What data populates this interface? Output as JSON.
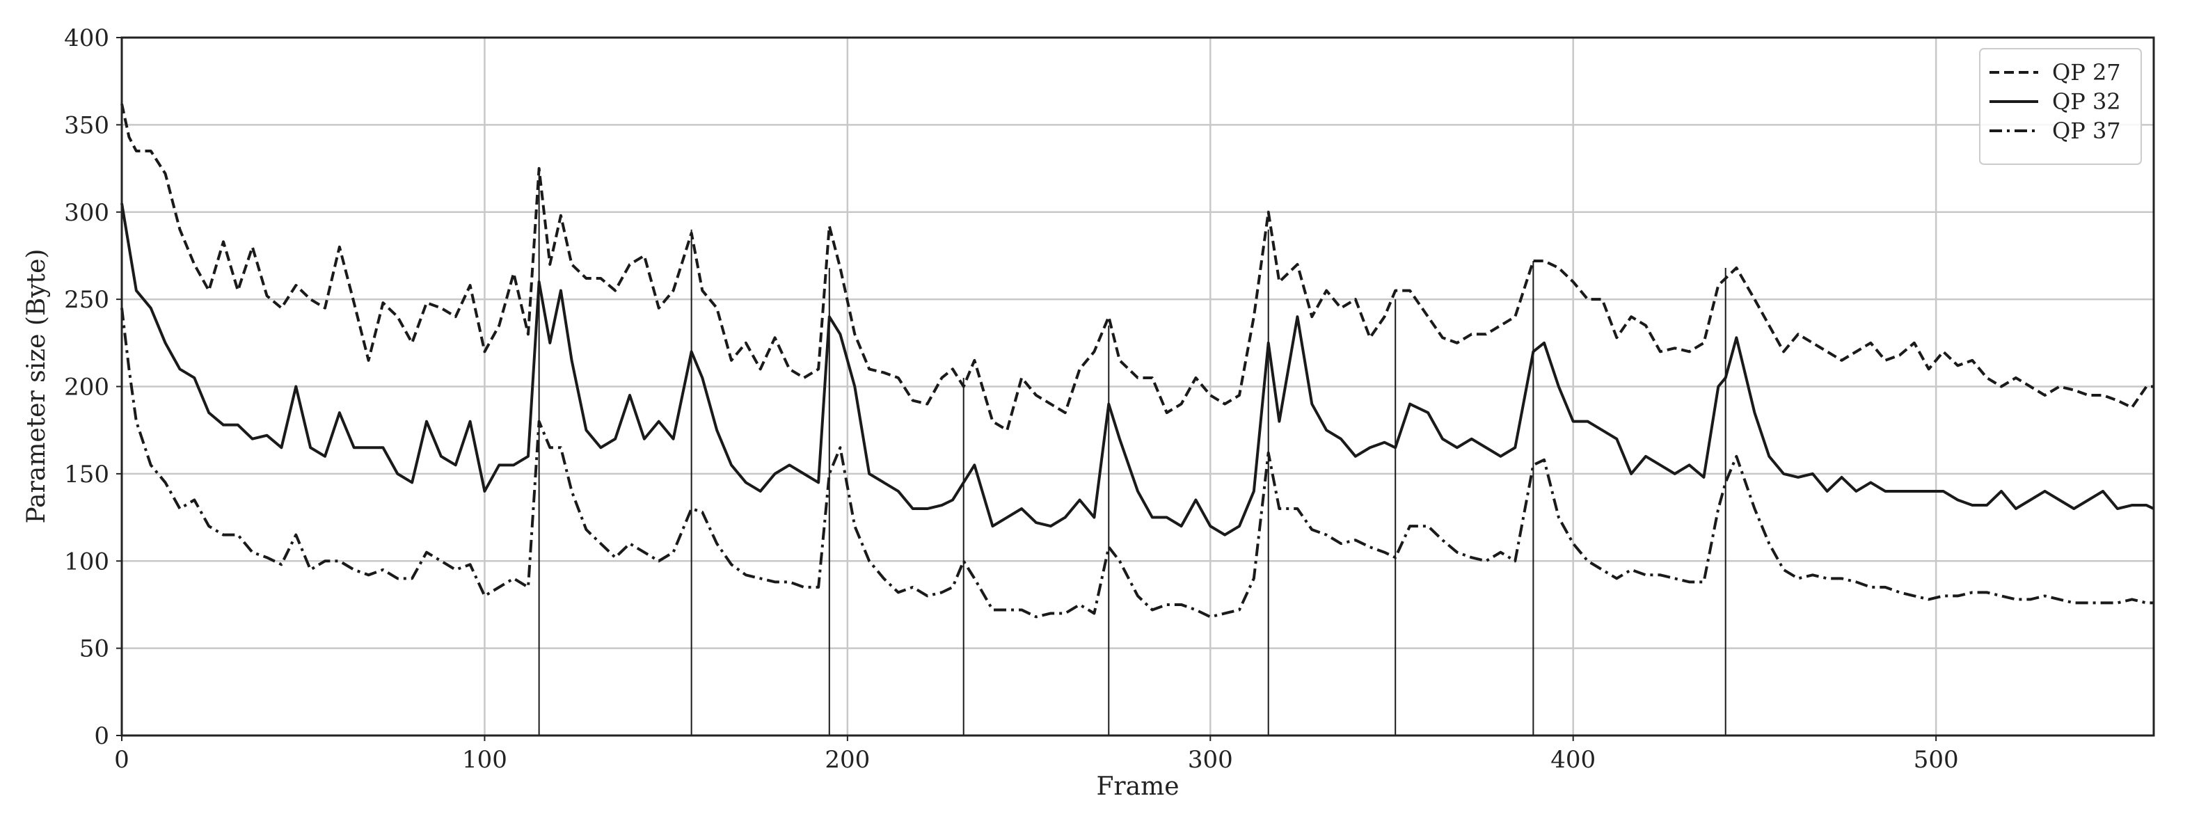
{
  "chart_data": {
    "type": "line",
    "xlabel": "Frame",
    "ylabel": "Parameter size (Byte)",
    "xlim": [
      0,
      560
    ],
    "ylim": [
      0,
      400
    ],
    "xticks": [
      0,
      100,
      200,
      300,
      400,
      500
    ],
    "yticks": [
      0,
      50,
      100,
      150,
      200,
      250,
      300,
      350,
      400
    ],
    "grid": true,
    "legend": "upper right",
    "x": [
      0,
      2,
      4,
      8,
      12,
      16,
      20,
      24,
      28,
      32,
      36,
      40,
      44,
      48,
      52,
      56,
      60,
      64,
      68,
      72,
      76,
      80,
      84,
      88,
      92,
      96,
      100,
      104,
      108,
      112,
      115,
      118,
      121,
      124,
      128,
      132,
      136,
      140,
      144,
      148,
      152,
      157,
      160,
      164,
      168,
      172,
      176,
      180,
      184,
      188,
      192,
      195,
      198,
      202,
      206,
      210,
      214,
      218,
      222,
      226,
      229,
      232,
      235,
      240,
      244,
      248,
      252,
      256,
      260,
      264,
      268,
      272,
      275,
      280,
      284,
      288,
      292,
      296,
      300,
      304,
      308,
      312,
      316,
      319,
      324,
      328,
      332,
      336,
      340,
      344,
      348,
      351,
      355,
      360,
      364,
      368,
      372,
      376,
      380,
      384,
      389,
      392,
      396,
      400,
      404,
      408,
      412,
      416,
      420,
      424,
      428,
      432,
      436,
      440,
      442,
      445,
      450,
      454,
      458,
      462,
      466,
      470,
      474,
      478,
      482,
      486,
      490,
      494,
      498,
      502,
      506,
      510,
      514,
      518,
      522,
      526,
      530,
      534,
      538,
      542,
      546,
      550,
      554,
      558,
      560
    ],
    "series": [
      {
        "name": "QP 27",
        "color": "#1a1a1a",
        "linestyle": "dashed",
        "values": [
          362,
          343,
          335,
          335,
          322,
          290,
          270,
          255,
          283,
          255,
          280,
          252,
          245,
          258,
          250,
          245,
          280,
          248,
          215,
          248,
          240,
          225,
          248,
          245,
          240,
          258,
          220,
          235,
          265,
          230,
          325,
          270,
          298,
          270,
          262,
          262,
          255,
          270,
          275,
          245,
          255,
          288,
          255,
          245,
          215,
          225,
          210,
          228,
          210,
          205,
          210,
          292,
          268,
          230,
          210,
          208,
          205,
          192,
          190,
          205,
          210,
          200,
          215,
          180,
          175,
          205,
          195,
          190,
          185,
          210,
          220,
          240,
          215,
          205,
          205,
          185,
          190,
          205,
          195,
          190,
          195,
          240,
          300,
          260,
          270,
          240,
          255,
          245,
          250,
          228,
          240,
          255,
          255,
          240,
          228,
          225,
          230,
          230,
          235,
          240,
          272,
          272,
          268,
          260,
          250,
          250,
          228,
          240,
          235,
          220,
          222,
          220,
          225,
          258,
          262,
          268,
          250,
          235,
          220,
          230,
          225,
          220,
          215,
          220,
          225,
          215,
          218,
          225,
          210,
          220,
          212,
          215,
          205,
          200,
          205,
          200,
          195,
          200,
          198,
          195,
          195,
          192,
          188,
          200,
          200
        ]
      },
      {
        "name": "QP 32",
        "color": "#1a1a1a",
        "linestyle": "solid",
        "values": [
          305,
          280,
          255,
          245,
          225,
          210,
          205,
          185,
          178,
          178,
          170,
          172,
          165,
          200,
          165,
          160,
          185,
          165,
          165,
          165,
          150,
          145,
          180,
          160,
          155,
          180,
          140,
          155,
          155,
          160,
          260,
          225,
          255,
          215,
          175,
          165,
          170,
          195,
          170,
          180,
          170,
          220,
          205,
          175,
          155,
          145,
          140,
          150,
          155,
          150,
          145,
          240,
          230,
          200,
          150,
          145,
          140,
          130,
          130,
          132,
          135,
          145,
          155,
          120,
          125,
          130,
          122,
          120,
          125,
          135,
          125,
          190,
          170,
          140,
          125,
          125,
          120,
          135,
          120,
          115,
          120,
          140,
          225,
          180,
          240,
          190,
          175,
          170,
          160,
          165,
          168,
          165,
          190,
          185,
          170,
          165,
          170,
          165,
          160,
          165,
          220,
          225,
          200,
          180,
          180,
          175,
          170,
          150,
          160,
          155,
          150,
          155,
          148,
          200,
          205,
          228,
          185,
          160,
          150,
          148,
          150,
          140,
          148,
          140,
          145,
          140,
          140,
          140,
          140,
          140,
          135,
          132,
          132,
          140,
          130,
          135,
          140,
          135,
          130,
          135,
          140,
          130,
          132,
          132,
          130
        ]
      },
      {
        "name": "QP 37",
        "color": "#1a1a1a",
        "linestyle": "dashdot",
        "values": [
          245,
          210,
          180,
          155,
          145,
          130,
          135,
          120,
          115,
          115,
          105,
          102,
          98,
          115,
          95,
          100,
          100,
          95,
          92,
          95,
          90,
          90,
          105,
          100,
          95,
          98,
          80,
          85,
          90,
          85,
          180,
          165,
          165,
          140,
          118,
          110,
          102,
          110,
          105,
          100,
          105,
          130,
          128,
          110,
          98,
          92,
          90,
          88,
          88,
          85,
          85,
          150,
          165,
          120,
          100,
          90,
          82,
          85,
          80,
          82,
          85,
          100,
          90,
          72,
          72,
          72,
          68,
          70,
          70,
          75,
          70,
          108,
          100,
          80,
          72,
          75,
          75,
          72,
          68,
          70,
          72,
          90,
          162,
          130,
          130,
          118,
          115,
          110,
          112,
          108,
          105,
          102,
          120,
          120,
          112,
          105,
          102,
          100,
          105,
          100,
          155,
          158,
          125,
          110,
          100,
          95,
          90,
          95,
          92,
          92,
          90,
          88,
          88,
          130,
          145,
          160,
          130,
          110,
          95,
          90,
          92,
          90,
          90,
          88,
          85,
          85,
          82,
          80,
          78,
          80,
          80,
          82,
          82,
          80,
          78,
          78,
          80,
          78,
          76,
          76,
          76,
          76,
          78,
          76,
          76
        ]
      }
    ],
    "keyframes": {
      "color": "#1a1a1a",
      "x": [
        115,
        157,
        195,
        232,
        272,
        316,
        351,
        389,
        442
      ],
      "values": [
        325,
        290,
        268,
        205,
        235,
        290,
        250,
        272,
        268
      ]
    }
  }
}
